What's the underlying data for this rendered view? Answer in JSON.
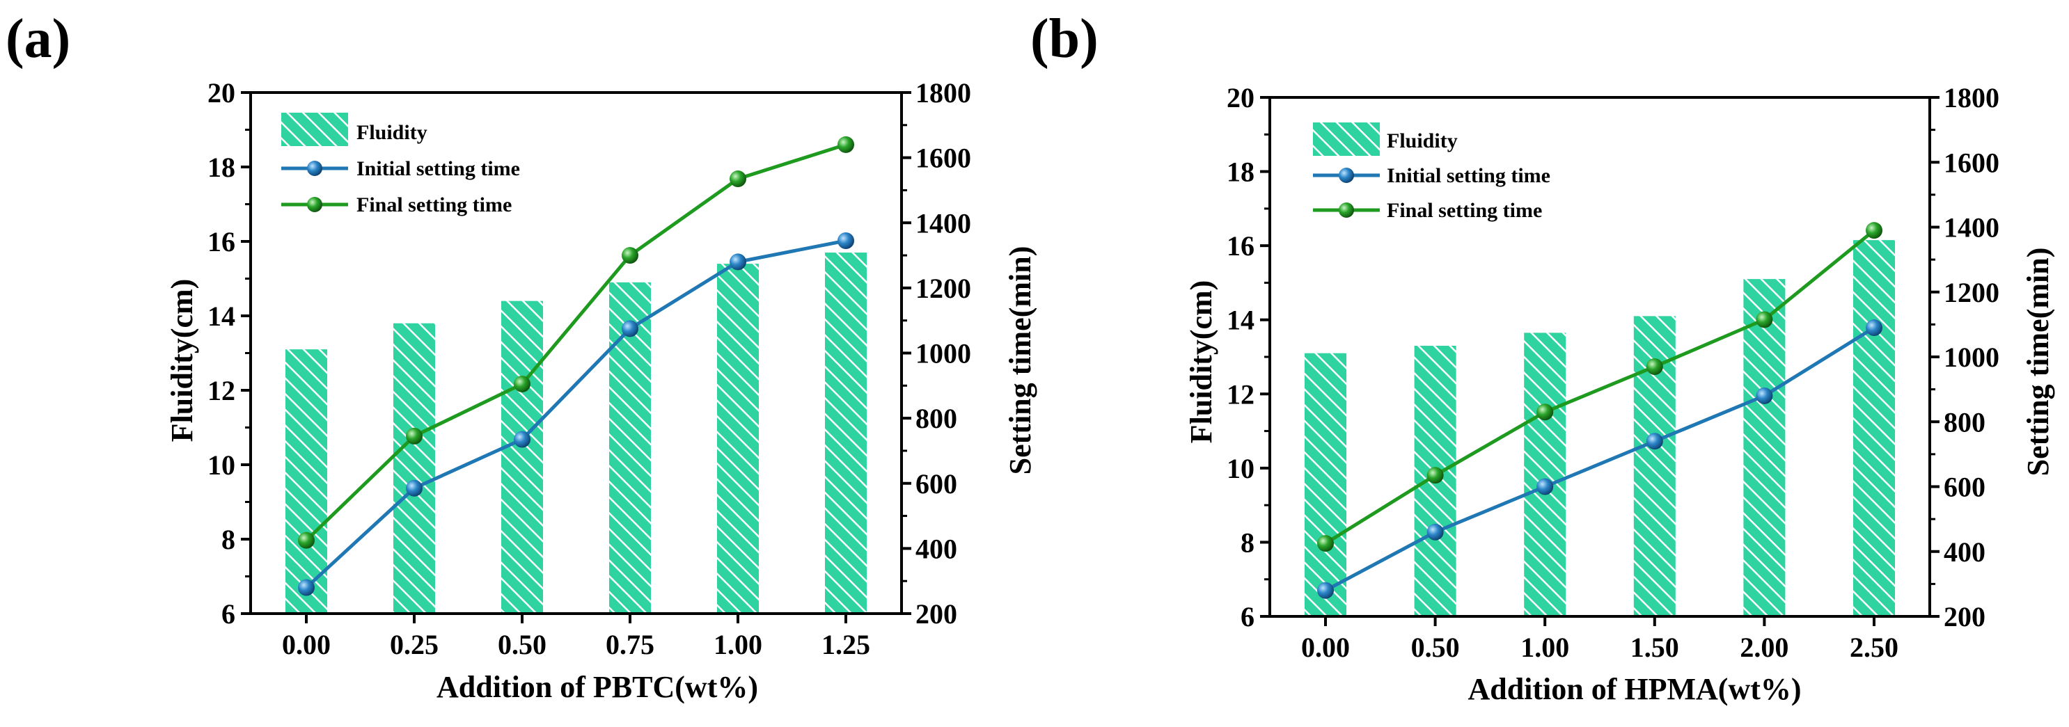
{
  "chart_data": [
    {
      "panel_label": "(a)",
      "type": "bar+line",
      "xlabel": "Addition of PBTC(wt%)",
      "ylabel": "Fluidity(cm)",
      "y2label": "Setting time(min)",
      "categories": [
        "0.00",
        "0.25",
        "0.50",
        "0.75",
        "1.00",
        "1.25"
      ],
      "ylim": [
        6,
        20
      ],
      "y_ticks": [
        "6",
        "8",
        "10",
        "12",
        "14",
        "16",
        "18",
        "20"
      ],
      "y2lim": [
        200,
        1800
      ],
      "y2_ticks": [
        "200",
        "400",
        "600",
        "800",
        "1000",
        "1200",
        "1400",
        "1600",
        "1800"
      ],
      "series": [
        {
          "name": "Fluidity",
          "kind": "bar",
          "axis": "left",
          "color": "#2ed3a0",
          "values": [
            13.1,
            13.8,
            14.4,
            14.9,
            15.4,
            15.7
          ]
        },
        {
          "name": "Initial setting time",
          "kind": "line",
          "axis": "right",
          "color": "#1f77b4",
          "values": [
            280,
            585,
            735,
            1075,
            1280,
            1345
          ]
        },
        {
          "name": "Final setting time",
          "kind": "line",
          "axis": "right",
          "color": "#1e9a1e",
          "values": [
            425,
            745,
            905,
            1300,
            1535,
            1640
          ]
        }
      ],
      "legend": [
        "Fluidity",
        "Initial setting time",
        "Final setting time"
      ],
      "legend_position": "top-left"
    },
    {
      "panel_label": "(b)",
      "type": "bar+line",
      "xlabel": "Addition of HPMA(wt%)",
      "ylabel": "Fluidity(cm)",
      "y2label": "Setting time(min)",
      "categories": [
        "0.00",
        "0.50",
        "1.00",
        "1.50",
        "2.00",
        "2.50"
      ],
      "ylim": [
        6,
        20
      ],
      "y_ticks": [
        "6",
        "8",
        "10",
        "12",
        "14",
        "16",
        "18",
        "20"
      ],
      "y2lim": [
        200,
        1800
      ],
      "y2_ticks": [
        "200",
        "400",
        "600",
        "800",
        "1000",
        "1200",
        "1400",
        "1600",
        "1800"
      ],
      "series": [
        {
          "name": "Fluidity",
          "kind": "bar",
          "axis": "left",
          "color": "#2ed3a0",
          "values": [
            13.1,
            13.3,
            13.65,
            14.1,
            15.1,
            16.15
          ]
        },
        {
          "name": "Initial setting time",
          "kind": "line",
          "axis": "right",
          "color": "#1f77b4",
          "values": [
            280,
            460,
            600,
            740,
            880,
            1090
          ]
        },
        {
          "name": "Final setting time",
          "kind": "line",
          "axis": "right",
          "color": "#1e9a1e",
          "values": [
            425,
            635,
            830,
            970,
            1115,
            1390
          ]
        }
      ],
      "legend": [
        "Fluidity",
        "Initial setting time",
        "Final setting time"
      ],
      "legend_position": "top-left"
    }
  ]
}
